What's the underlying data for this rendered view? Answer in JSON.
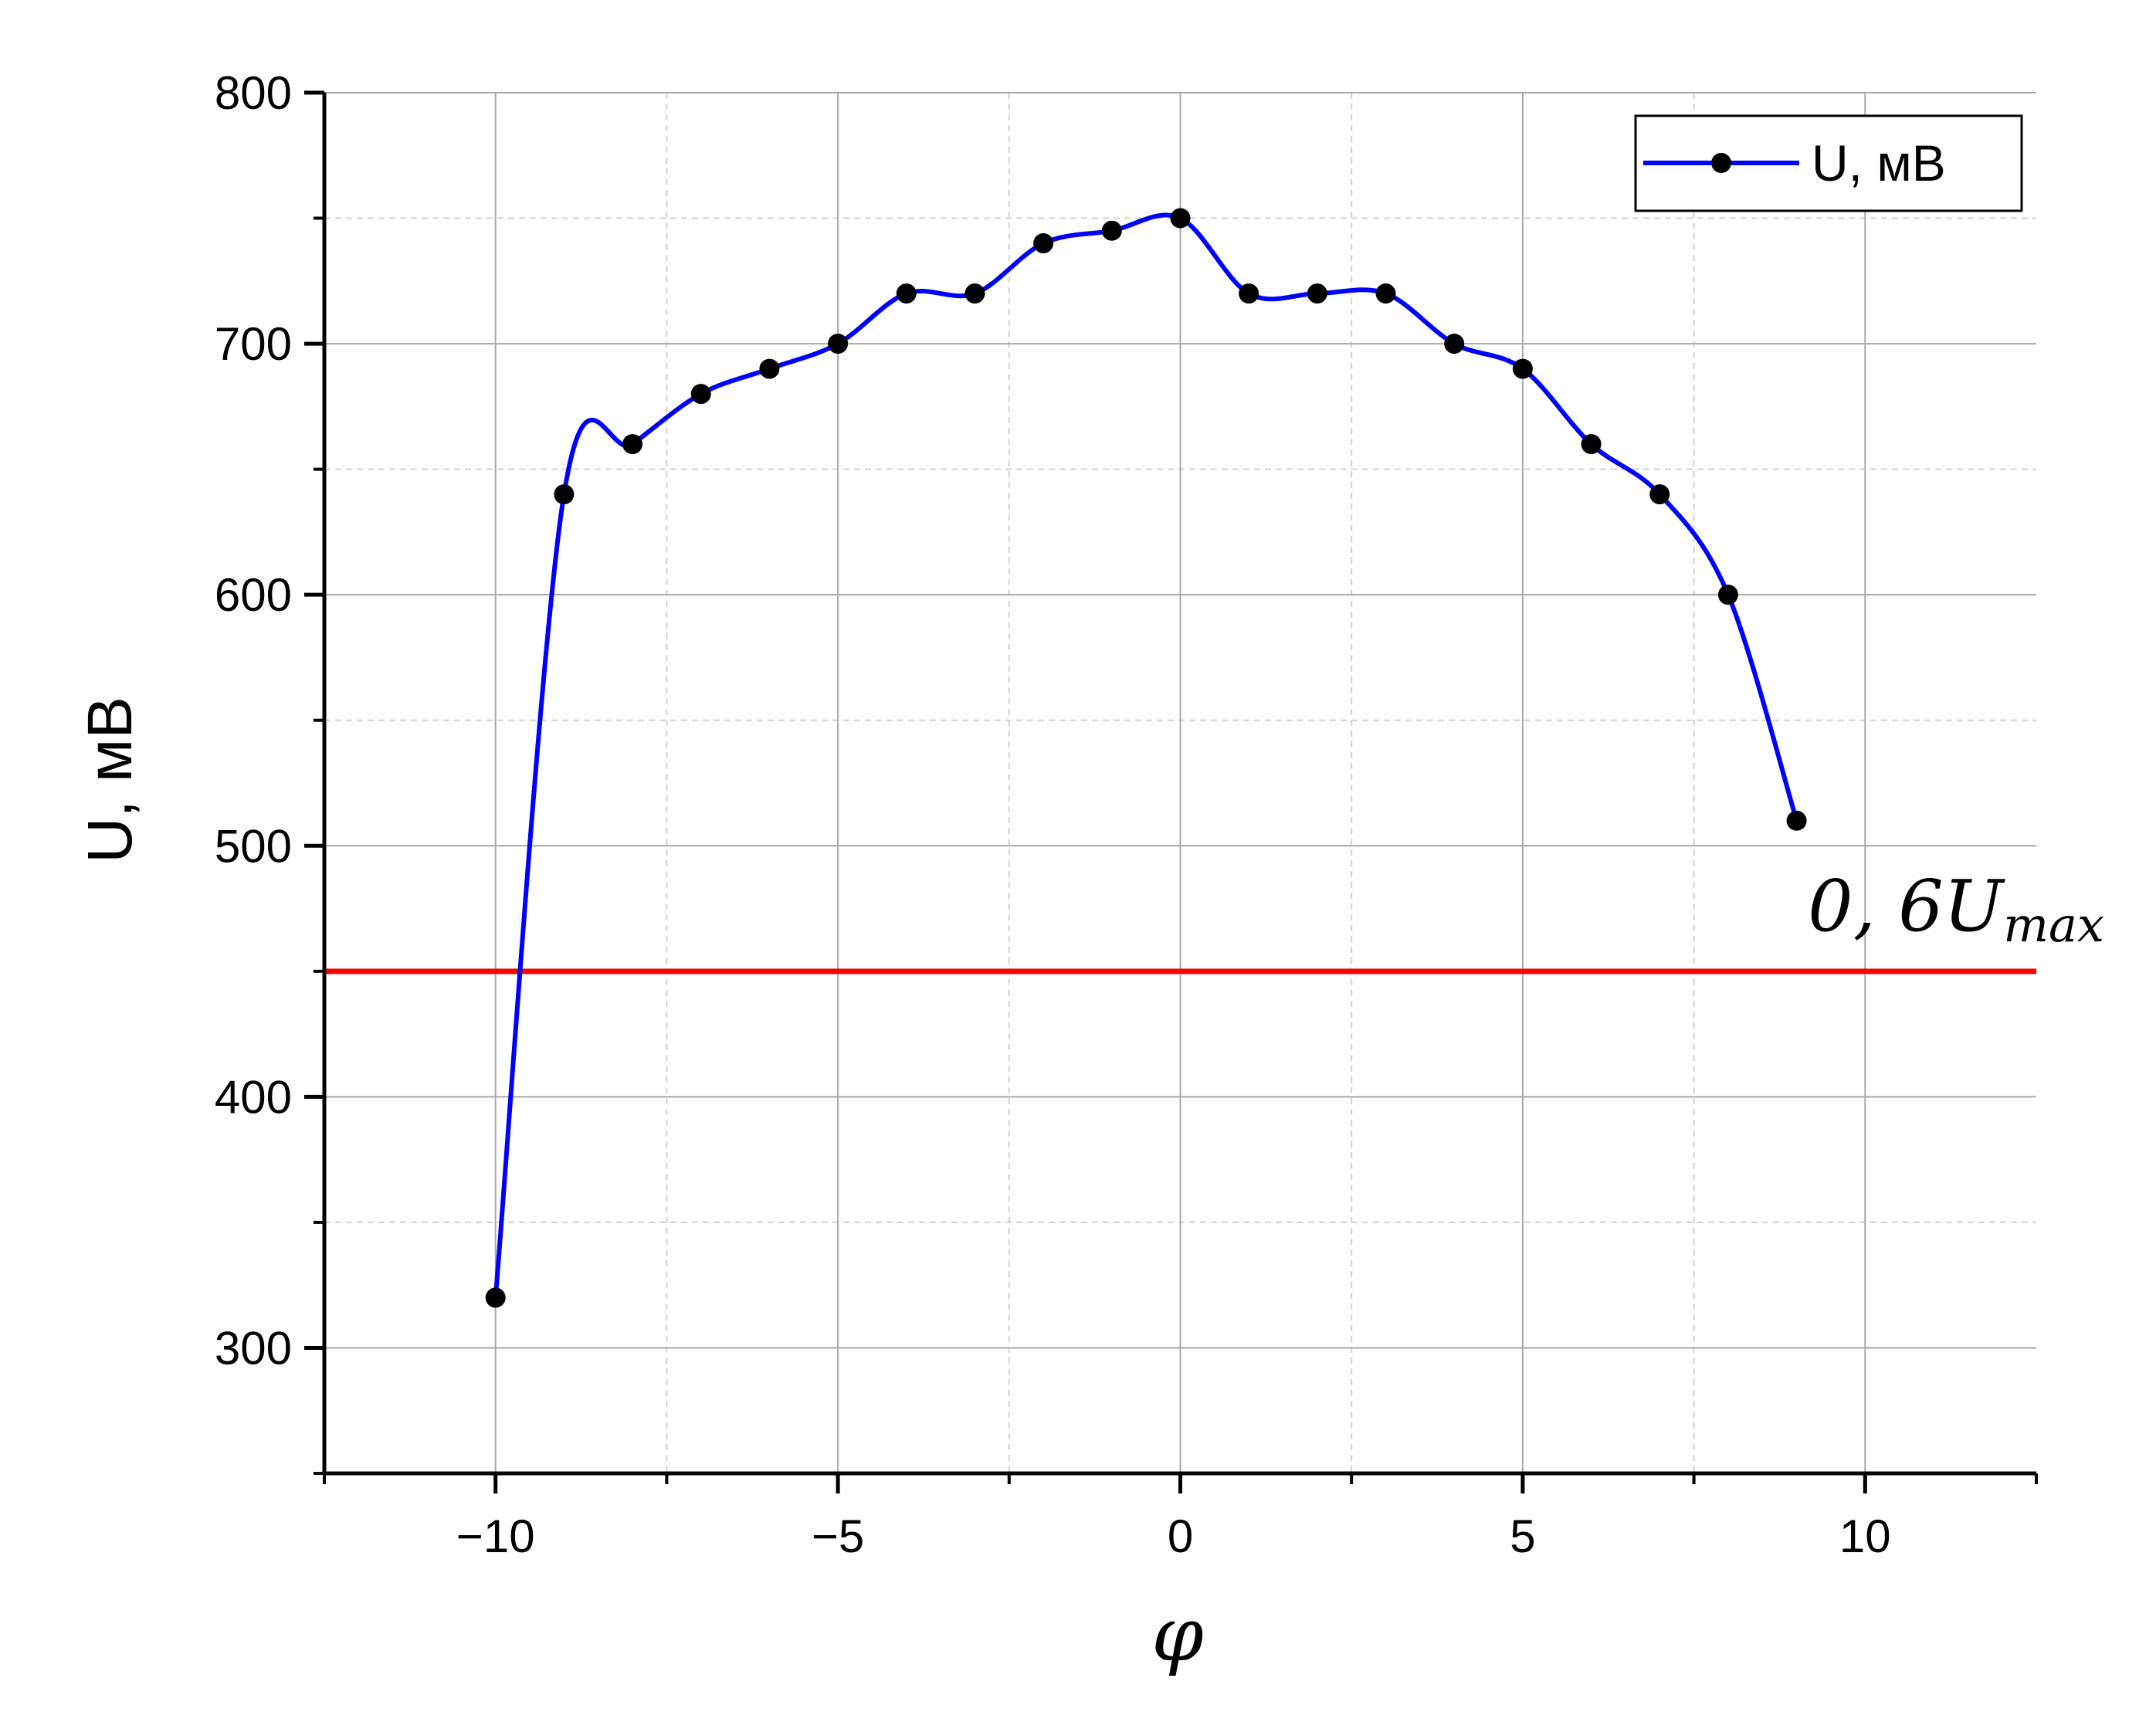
{
  "chart_data": {
    "type": "line",
    "title": "",
    "xlabel": "φ",
    "ylabel": "U, мВ",
    "xlim": [
      -12.5,
      12.5
    ],
    "ylim": [
      250,
      800
    ],
    "xticks": [
      -10,
      -5,
      0,
      5,
      10
    ],
    "xtick_labels": [
      "−10",
      "−5",
      "0",
      "5",
      "10"
    ],
    "yticks": [
      300,
      400,
      500,
      600,
      700,
      800
    ],
    "ytick_labels": [
      "300",
      "400",
      "500",
      "600",
      "700",
      "800"
    ],
    "grid": true,
    "legend_position": "top-right",
    "series": [
      {
        "name": "U, мВ",
        "color": "#0000ff",
        "marker_color": "#000000",
        "style": "smoothed line with markers",
        "x": [
          -10,
          -9,
          -8,
          -7,
          -6,
          -5,
          -4,
          -3,
          -2,
          -1,
          0,
          1,
          2,
          3,
          4,
          5,
          6,
          7,
          8,
          9
        ],
        "y": [
          320,
          640,
          660,
          680,
          690,
          700,
          720,
          720,
          740,
          745,
          750,
          720,
          720,
          720,
          700,
          690,
          660,
          640,
          600,
          510
        ]
      }
    ],
    "reference_line": {
      "y": 450,
      "color": "#ff0000",
      "label_main": "0, 6U",
      "label_sub": "max"
    }
  }
}
